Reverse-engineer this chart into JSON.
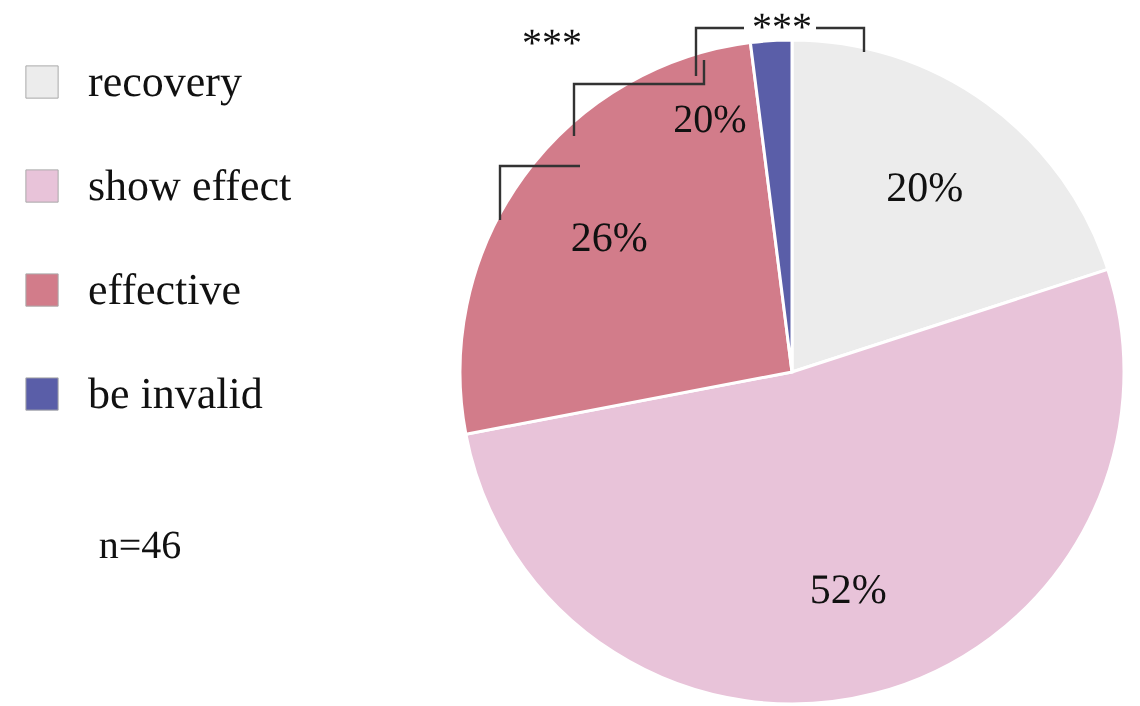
{
  "chart_data": {
    "type": "pie",
    "categories": [
      "recovery",
      "show effect",
      "effective",
      "be invalid"
    ],
    "values": [
      20,
      52,
      26,
      2
    ],
    "colors": [
      "#ececec",
      "#e8c3d9",
      "#d27c8a",
      "#5a5ea8"
    ],
    "value_labels": [
      "20%",
      "52%",
      "26%",
      null
    ],
    "legend": "left",
    "annotations": [
      "20%",
      "***",
      "***",
      "n=46"
    ]
  }
}
